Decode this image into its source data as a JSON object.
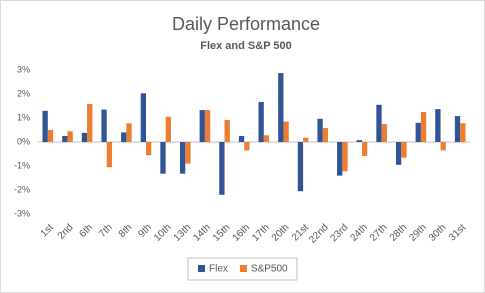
{
  "chart_data": {
    "type": "bar",
    "title": "Daily Performance",
    "subtitle": "Flex and S&P 500",
    "categories": [
      "1st",
      "2nd",
      "6th",
      "7th",
      "8th",
      "9th",
      "10th",
      "13th",
      "14th",
      "15th",
      "16th",
      "17th",
      "20th",
      "21st",
      "22nd",
      "23rd",
      "24th",
      "27th",
      "28th",
      "29th",
      "30th",
      "31st"
    ],
    "series": [
      {
        "name": "Flex",
        "color": "#2f5597",
        "values": [
          1.3,
          0.25,
          0.38,
          1.35,
          0.4,
          2.03,
          -1.32,
          -1.32,
          1.33,
          -2.2,
          0.25,
          1.67,
          2.87,
          -2.05,
          0.97,
          -1.4,
          0.08,
          1.55,
          -0.95,
          0.8,
          1.37,
          1.08
        ]
      },
      {
        "name": "S&P500",
        "color": "#ed7d31",
        "values": [
          0.5,
          0.45,
          1.58,
          -1.05,
          0.78,
          -0.55,
          1.05,
          -0.9,
          1.33,
          0.92,
          -0.35,
          0.28,
          0.85,
          0.18,
          0.58,
          -1.22,
          -0.58,
          0.75,
          -0.65,
          1.25,
          -0.35,
          0.78
        ]
      }
    ],
    "ylim": [
      -3,
      3
    ],
    "yticks": [
      {
        "value": -3,
        "label": "-3%"
      },
      {
        "value": -2,
        "label": "-2%"
      },
      {
        "value": -1,
        "label": "-1%"
      },
      {
        "value": 0,
        "label": "0%"
      },
      {
        "value": 1,
        "label": "1%"
      },
      {
        "value": 2,
        "label": "2%"
      },
      {
        "value": 3,
        "label": "3%"
      }
    ],
    "grid": false,
    "legend": "bottom"
  }
}
